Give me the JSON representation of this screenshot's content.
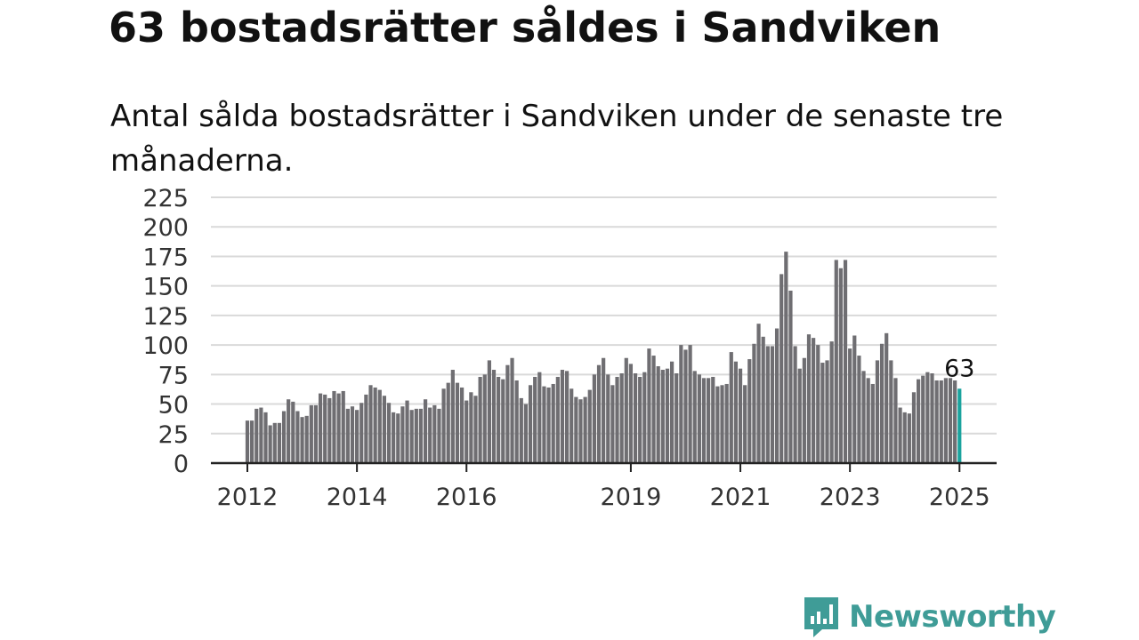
{
  "header": {
    "title": "63 bostadsrätter såldes i Sandviken",
    "subtitle": "Antal sålda bostadsrätter i Sandviken under de senaste tre månaderna."
  },
  "brand": {
    "name": "Newsworthy",
    "color": "#3f9c97",
    "logo_icon": "bar-chart-speech-bubble-icon"
  },
  "colors": {
    "bar": "#6f6e72",
    "highlight": "#1aa39e",
    "grid": "#d9d9d9",
    "axis": "#222222"
  },
  "chart_data": {
    "type": "bar",
    "title": "63 bostadsrätter såldes i Sandviken",
    "xlabel": "",
    "ylabel": "",
    "ylim": [
      0,
      225
    ],
    "yticks": [
      0,
      25,
      50,
      75,
      100,
      125,
      150,
      175,
      200,
      225
    ],
    "xticks": [
      {
        "label": "2012",
        "index": 0
      },
      {
        "label": "2014",
        "index": 24
      },
      {
        "label": "2016",
        "index": 48
      },
      {
        "label": "2019",
        "index": 84
      },
      {
        "label": "2021",
        "index": 108
      },
      {
        "label": "2023",
        "index": 132
      },
      {
        "label": "2025",
        "index": 156
      }
    ],
    "grid": true,
    "values": [
      36,
      36,
      46,
      47,
      43,
      32,
      34,
      34,
      44,
      54,
      52,
      44,
      39,
      40,
      49,
      49,
      59,
      58,
      55,
      61,
      59,
      61,
      46,
      48,
      45,
      51,
      58,
      66,
      64,
      62,
      57,
      51,
      43,
      42,
      48,
      53,
      45,
      46,
      46,
      54,
      47,
      49,
      46,
      63,
      68,
      79,
      68,
      64,
      53,
      60,
      57,
      73,
      75,
      87,
      79,
      73,
      71,
      83,
      89,
      70,
      55,
      50,
      66,
      73,
      77,
      65,
      64,
      67,
      73,
      79,
      78,
      63,
      56,
      54,
      56,
      62,
      75,
      83,
      89,
      75,
      66,
      73,
      76,
      89,
      84,
      76,
      73,
      77,
      97,
      91,
      82,
      79,
      80,
      86,
      76,
      100,
      96,
      100,
      78,
      75,
      72,
      72,
      73,
      65,
      66,
      67,
      94,
      86,
      80,
      66,
      88,
      101,
      118,
      107,
      99,
      99,
      114,
      160,
      179,
      146,
      99,
      80,
      89,
      109,
      106,
      100,
      85,
      87,
      103,
      172,
      165,
      172,
      97,
      108,
      91,
      78,
      72,
      67,
      87,
      101,
      110,
      87,
      72,
      47,
      43,
      42,
      60,
      71,
      74,
      77,
      76,
      70,
      70,
      72,
      72,
      70,
      63
    ],
    "highlight": {
      "index": 156,
      "label": "63"
    }
  }
}
